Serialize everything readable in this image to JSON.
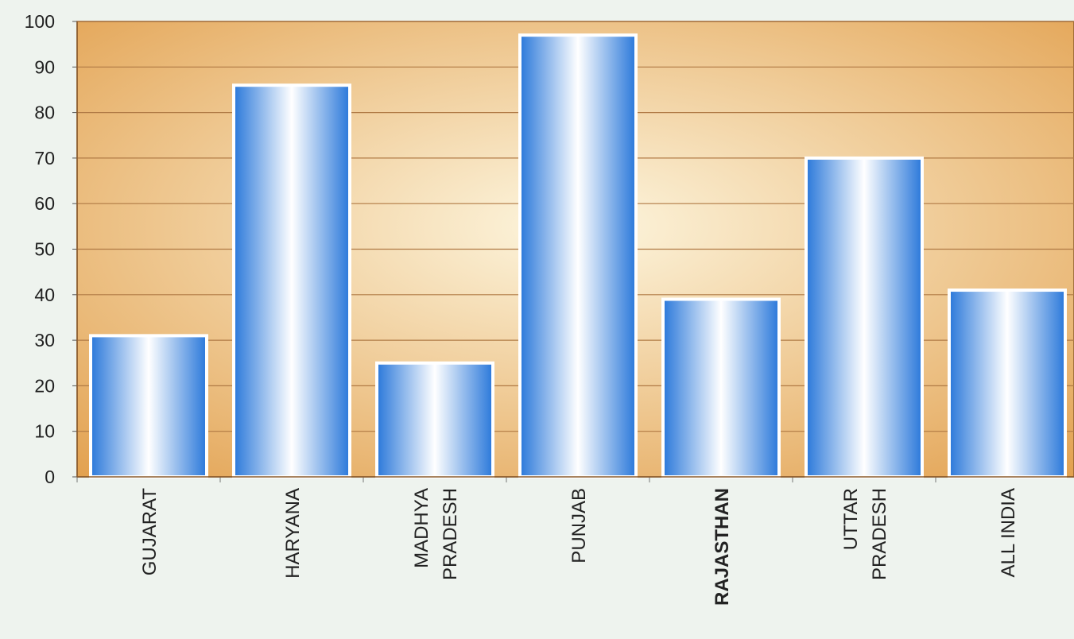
{
  "chart_data": {
    "type": "bar",
    "categories": [
      "GUJARAT",
      "HARYANA",
      "MADHYA PRADESH",
      "PUNJAB",
      "RAJASTHAN",
      "UTTAR PRADESH",
      "ALL INDIA"
    ],
    "category_lines": [
      [
        "GUJARAT"
      ],
      [
        "HARYANA"
      ],
      [
        "MADHYA",
        "PRADESH"
      ],
      [
        "PUNJAB"
      ],
      [
        "RAJASTHAN"
      ],
      [
        "UTTAR",
        "PRADESH"
      ],
      [
        "ALL INDIA"
      ]
    ],
    "bold_categories": [
      "RAJASTHAN"
    ],
    "values": [
      31,
      86,
      25,
      97,
      39,
      70,
      41
    ],
    "ylim": [
      0,
      100
    ],
    "yticks": [
      "0",
      "10",
      "20",
      "30",
      "40",
      "50",
      "60",
      "70",
      "80",
      "90",
      "100"
    ],
    "title": "",
    "xlabel": "",
    "ylabel": "",
    "grid": true,
    "colors": {
      "bar_edge": "#2a78da",
      "bar_center": "#ffffff",
      "plot_bg_edge": "#e2a04e",
      "plot_bg_center": "#fdf6df",
      "gridline": "#b07a45",
      "text": "#222222"
    }
  }
}
